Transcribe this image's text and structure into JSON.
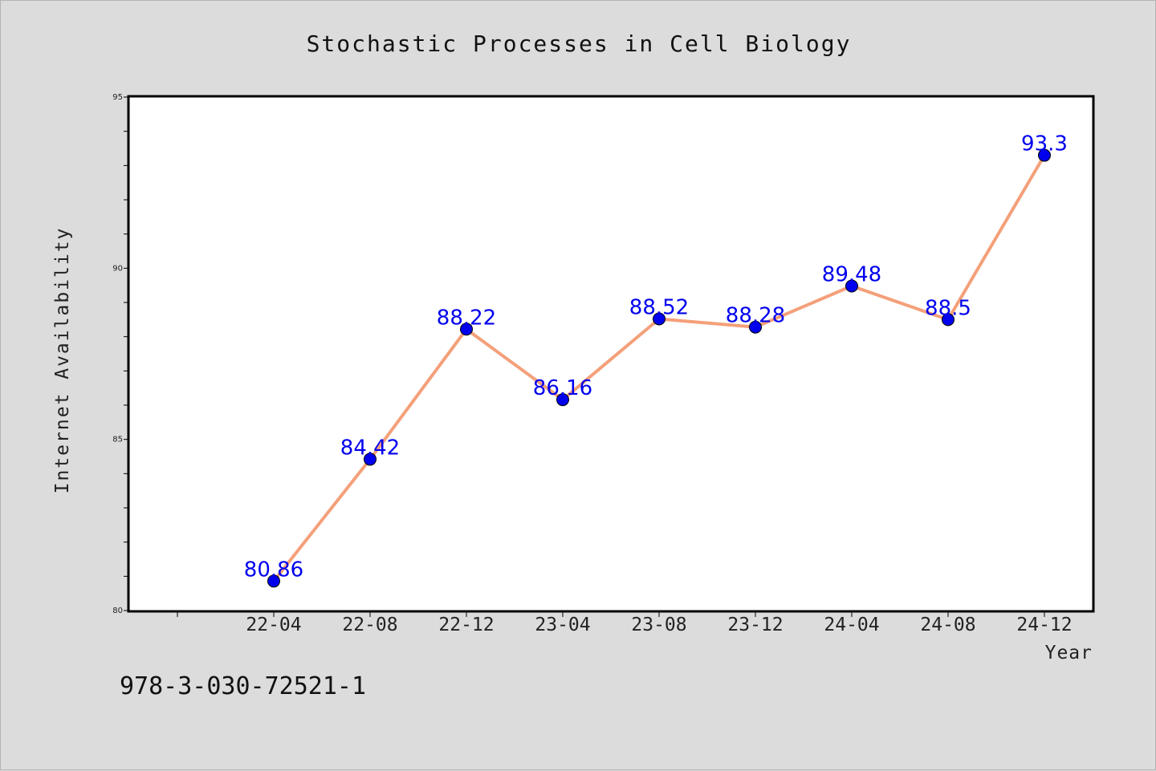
{
  "chart_data": {
    "type": "line",
    "title": "Stochastic Processes in Cell Biology",
    "xlabel": "Year",
    "ylabel": "Internet Availability",
    "categories": [
      "22-04",
      "22-08",
      "22-12",
      "23-04",
      "23-08",
      "23-12",
      "24-04",
      "24-08",
      "24-12"
    ],
    "values": [
      80.86,
      84.42,
      88.22,
      86.16,
      88.52,
      88.28,
      89.48,
      88.5,
      93.3
    ],
    "data_labels": [
      "80.86",
      "84.42",
      "88.22",
      "86.16",
      "88.52",
      "88.28",
      "89.48",
      "88.5",
      "93.3"
    ],
    "ylim": [
      80,
      95
    ],
    "yticks": [
      "80",
      "85",
      "90",
      "95"
    ],
    "grid": false,
    "line_color": "#f4a07a",
    "marker_color": "#0000ee",
    "label_color": "#0000ee"
  },
  "footer": {
    "isbn": "978-3-030-72521-1"
  }
}
